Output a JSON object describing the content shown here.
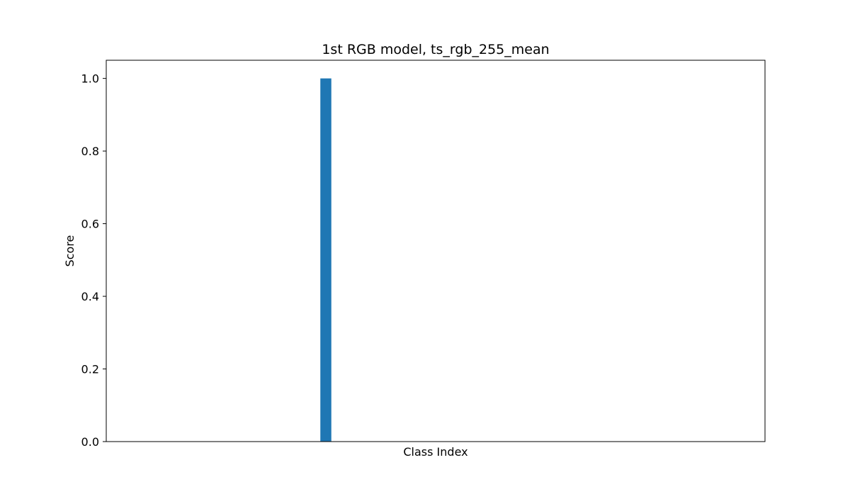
{
  "chart_data": {
    "type": "bar",
    "title": "1st RGB model, ts_rgb_255_mean",
    "xlabel": "Class Index",
    "ylabel": "Score",
    "xlim": [
      -0.5,
      2.5
    ],
    "ylim": [
      0,
      1.05
    ],
    "yticks": [
      0.0,
      0.2,
      0.4,
      0.6,
      0.8,
      1.0
    ],
    "ytick_labels": [
      "0.0",
      "0.2",
      "0.4",
      "0.6",
      "0.8",
      "1.0"
    ],
    "x": [
      0.5
    ],
    "values": [
      1.0
    ],
    "bar_width": 0.05,
    "color": "#1f77b4",
    "grid": false,
    "legend": "none"
  }
}
